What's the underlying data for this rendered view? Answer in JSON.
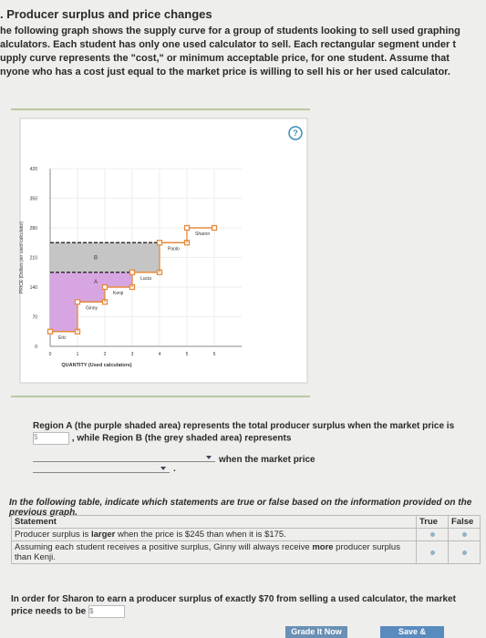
{
  "header": {
    "title": ". Producer surplus and price changes"
  },
  "intro_lines": [
    "he following graph shows the supply curve for a group of students looking to sell used graphing",
    "alculators. Each student has only one used calculator to sell. Each rectangular segment under t",
    "upply curve represents the \"cost,\" or minimum acceptable price, for one student. Assume that",
    "nyone who has a cost just equal to the market price is willing to sell his or her used calculator."
  ],
  "graph": {
    "help": "?",
    "y_label": "PRICE (Dollars per used calculator)",
    "x_label": "QUANTITY (Used calculators)",
    "xlim": [
      0,
      7
    ],
    "xticks": [
      0,
      1,
      2,
      3,
      4,
      5,
      6
    ],
    "ylim": [
      0,
      420
    ],
    "yticks": [
      0,
      70,
      140,
      210,
      280,
      350,
      420
    ],
    "price_lines": [
      245,
      175
    ],
    "region_labels": [
      "A",
      "B"
    ],
    "suppliers": [
      {
        "name": "Eric",
        "cost": 35
      },
      {
        "name": "Ginny",
        "cost": 105
      },
      {
        "name": "Kenji",
        "cost": 140
      },
      {
        "name": "Lucia",
        "cost": 175
      },
      {
        "name": "Paolo",
        "cost": 245
      },
      {
        "name": "Sharon",
        "cost": 280
      }
    ]
  },
  "question1": {
    "part1": "Region A (the purple shaded area) represents the total producer surplus when the market price is",
    "currency": "$",
    "part2": ", while Region B (the grey shaded area) represents",
    "part3": "when the market price",
    "end": "."
  },
  "table_intro": "In the following table, indicate which statements are true or false based on the information provided on the previous graph.",
  "table": {
    "headers": [
      "Statement",
      "True",
      "False"
    ],
    "rows": [
      [
        "Producer surplus is ",
        "larger",
        " when the price is $245 than when it is $175."
      ],
      [
        "Assuming each student receives a positive surplus, Ginny will always receive ",
        "more",
        " producer surplus than Kenji."
      ]
    ]
  },
  "question2": {
    "text": "In order for Sharon to earn a producer surplus of exactly $70 from selling a used calculator, the market price needs to be",
    "currency": "$"
  },
  "buttons": [
    "Grade It Now",
    "Save &"
  ]
}
